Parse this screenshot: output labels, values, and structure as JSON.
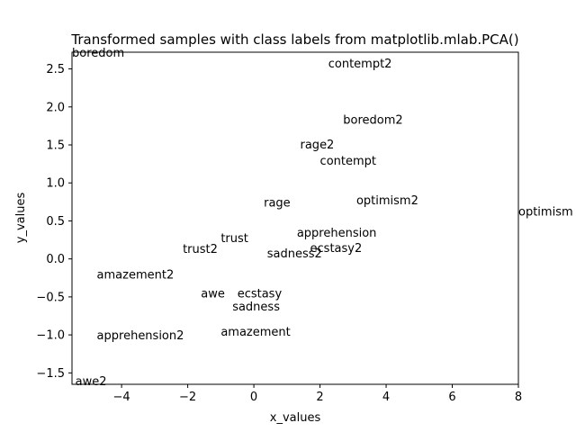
{
  "chart_data": {
    "type": "scatter",
    "title": "Transformed samples with class labels from matplotlib.mlab.PCA()",
    "xlabel": "x_values",
    "ylabel": "y_values",
    "xlim": [
      -5.5,
      8.0
    ],
    "ylim": [
      -1.65,
      2.72
    ],
    "xticks": [
      -4,
      -2,
      0,
      2,
      4,
      6,
      8
    ],
    "xtick_labels": [
      "−4",
      "−2",
      "0",
      "2",
      "4",
      "6",
      "8"
    ],
    "yticks": [
      -1.5,
      -1.0,
      -0.5,
      0.0,
      0.5,
      1.0,
      1.5,
      2.0,
      2.5
    ],
    "ytick_labels": [
      "−1.5",
      "−1.0",
      "−0.5",
      "0.0",
      "0.5",
      "1.0",
      "1.5",
      "2.0",
      "2.5"
    ],
    "grid": false,
    "points": [
      {
        "label": "boredom",
        "x": -5.5,
        "y": 2.72
      },
      {
        "label": "contempt2",
        "x": 2.25,
        "y": 2.58
      },
      {
        "label": "boredom2",
        "x": 2.7,
        "y": 1.84
      },
      {
        "label": "rage2",
        "x": 1.4,
        "y": 1.51
      },
      {
        "label": "contempt",
        "x": 2.0,
        "y": 1.3
      },
      {
        "label": "optimism2",
        "x": 3.1,
        "y": 0.78
      },
      {
        "label": "rage",
        "x": 0.3,
        "y": 0.75
      },
      {
        "label": "optimism",
        "x": 8.0,
        "y": 0.63
      },
      {
        "label": "apprehension",
        "x": 1.3,
        "y": 0.35
      },
      {
        "label": "trust",
        "x": -1.0,
        "y": 0.28
      },
      {
        "label": "trust2",
        "x": -2.15,
        "y": 0.14
      },
      {
        "label": "ecstasy2",
        "x": 1.7,
        "y": 0.15
      },
      {
        "label": "sadness2",
        "x": 0.4,
        "y": 0.08
      },
      {
        "label": "amazement2",
        "x": -4.75,
        "y": -0.2
      },
      {
        "label": "awe",
        "x": -1.6,
        "y": -0.45
      },
      {
        "label": "ecstasy",
        "x": -0.5,
        "y": -0.45
      },
      {
        "label": "sadness",
        "x": -0.65,
        "y": -0.62
      },
      {
        "label": "amazement",
        "x": -1.0,
        "y": -0.95
      },
      {
        "label": "apprehension2",
        "x": -4.75,
        "y": -1.0
      },
      {
        "label": "awe2",
        "x": -5.4,
        "y": -1.6
      }
    ]
  }
}
